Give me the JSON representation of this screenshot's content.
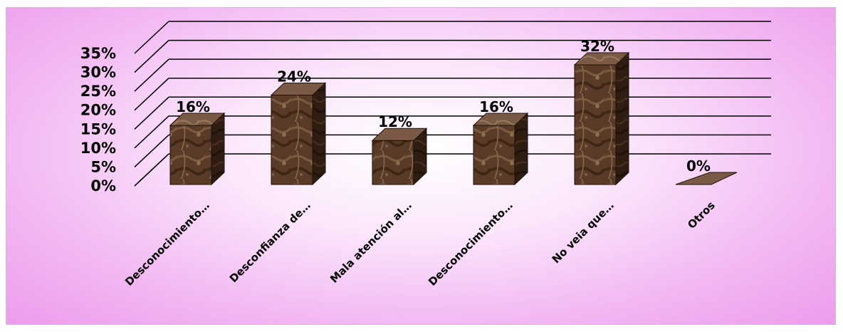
{
  "chart_data": {
    "type": "bar",
    "title": "",
    "xlabel": "",
    "ylabel": "",
    "categories": [
      "Desconocimiento…",
      "Desconfianza de…",
      "Mala atención al…",
      "Desconocimiento…",
      "No veia que…",
      "Otros"
    ],
    "values": [
      16,
      24,
      12,
      16,
      32,
      0
    ],
    "data_labels": [
      "16%",
      "24%",
      "12%",
      "16%",
      "32%",
      "0%"
    ],
    "ylim": [
      0,
      35
    ],
    "yticks": [
      0,
      5,
      10,
      15,
      20,
      25,
      30,
      35
    ],
    "ytick_labels": [
      "0%",
      "5%",
      "10%",
      "15%",
      "20%",
      "25%",
      "30%",
      "35%"
    ],
    "grid": true,
    "legend": "none",
    "style": "3d-column",
    "colors": {
      "bar_front": "#5a3b27",
      "bar_side": "#2f1d12",
      "bar_top": "#7a5a44",
      "grid": "#000000",
      "background_outer": "#ec9cec",
      "background_inner": "#ffffff"
    }
  }
}
